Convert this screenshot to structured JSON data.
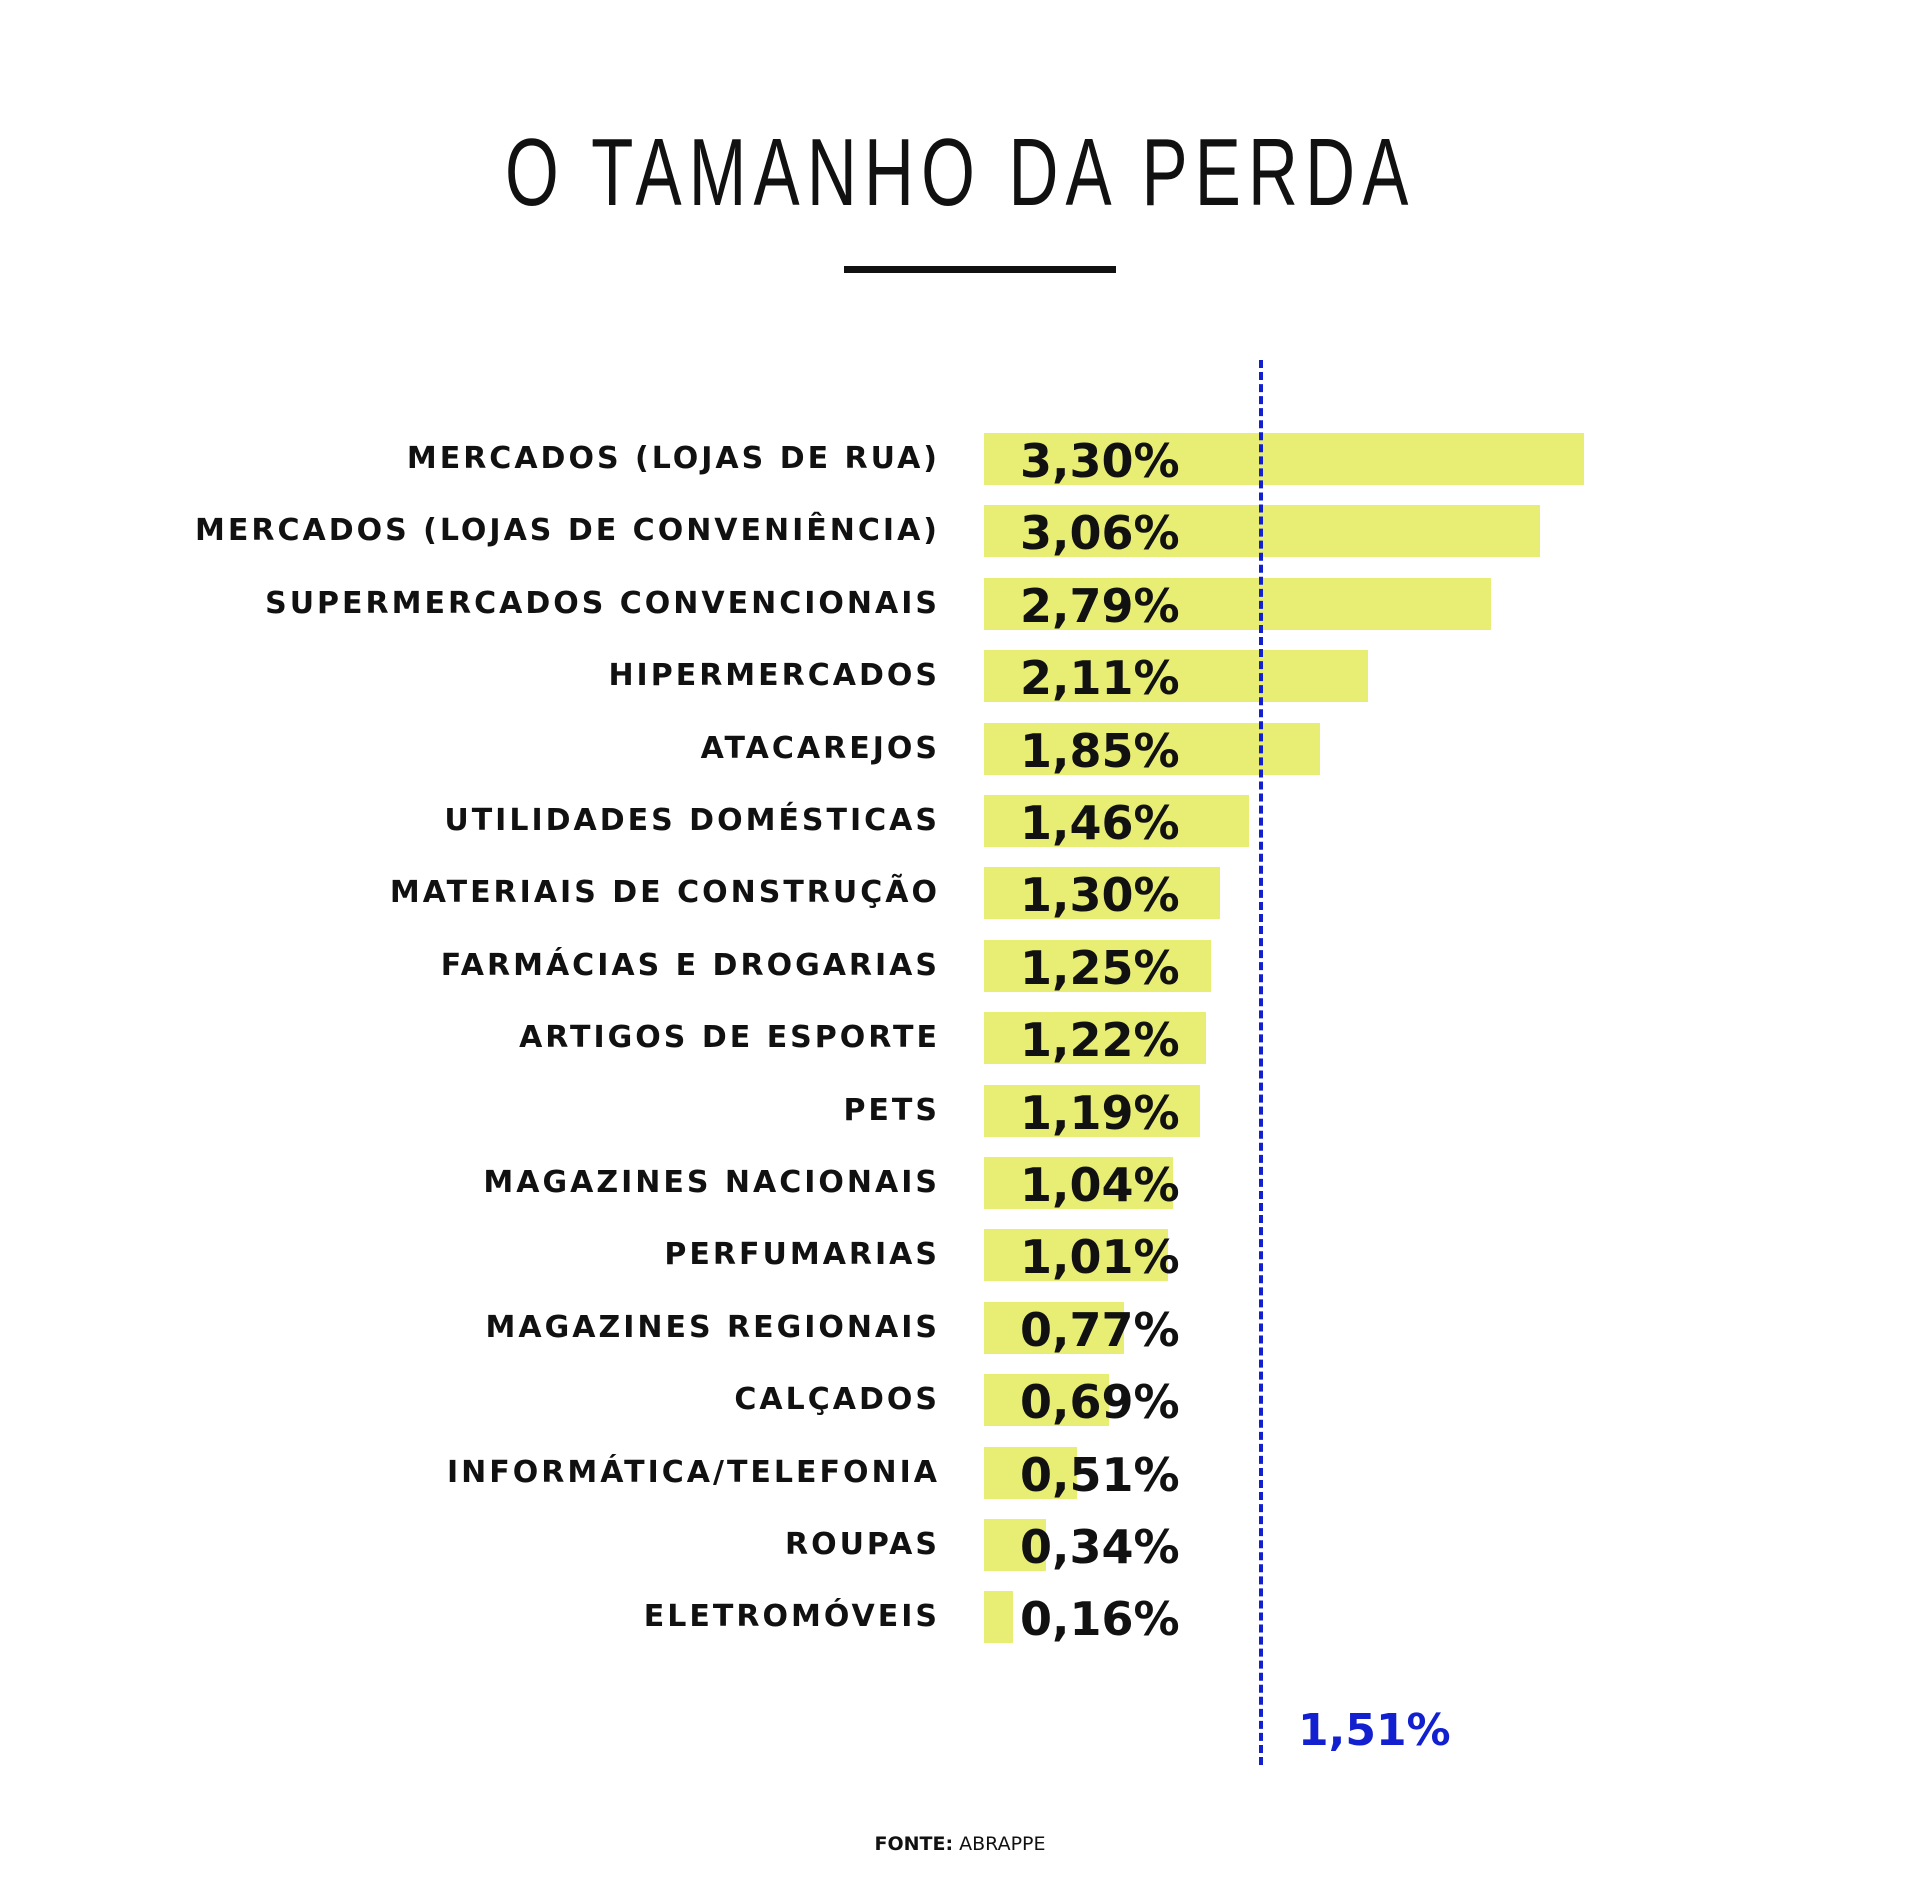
{
  "chart_data": {
    "type": "bar",
    "orientation": "horizontal",
    "title": "O TAMANHO DA PERDA",
    "categories": [
      "MERCADOS (LOJAS DE RUA)",
      "MERCADOS (LOJAS DE CONVENIÊNCIA)",
      "SUPERMERCADOS CONVENCIONAIS",
      "HIPERMERCADOS",
      "ATACAREJOS",
      "UTILIDADES DOMÉSTICAS",
      "MATERIAIS DE CONSTRUÇÃO",
      "FARMÁCIAS E DROGARIAS",
      "ARTIGOS DE ESPORTE",
      "PETS",
      "MAGAZINES NACIONAIS",
      "PERFUMARIAS",
      "MAGAZINES REGIONAIS",
      "CALÇADOS",
      "INFORMÁTICA/TELEFONIA",
      "ROUPAS",
      "ELETROMÓVEIS"
    ],
    "values": [
      3.3,
      3.06,
      2.79,
      2.11,
      1.85,
      1.46,
      1.3,
      1.25,
      1.22,
      1.19,
      1.04,
      1.01,
      0.77,
      0.69,
      0.51,
      0.34,
      0.16
    ],
    "value_labels": [
      "3,30%",
      "3,06%",
      "2,79%",
      "2,11%",
      "1,85%",
      "1,46%",
      "1,30%",
      "1,25%",
      "1,22%",
      "1,19%",
      "1,04%",
      "1,01%",
      "0,77%",
      "0,69%",
      "0,51%",
      "0,34%",
      "0,16%"
    ],
    "reference_line": {
      "value": 1.51,
      "label": "1,51%"
    },
    "xlim": [
      0,
      3.3
    ],
    "grid": false,
    "bar_color": "#e8ee74",
    "reference_color": "#1320d0"
  },
  "source": {
    "prefix": "FONTE:",
    "name": "ABRAPPE"
  }
}
